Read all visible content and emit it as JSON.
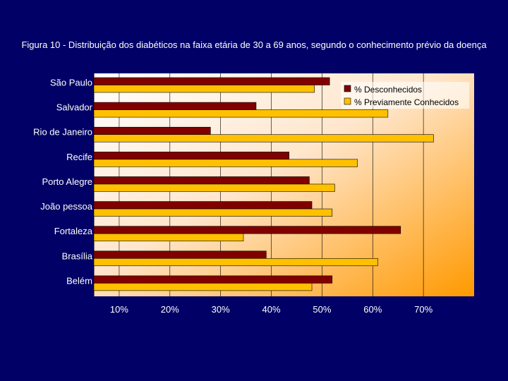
{
  "slide": {
    "background": "#000066"
  },
  "chart_data": {
    "type": "bar",
    "orientation": "horizontal",
    "title": "Figura 10 - Distribuição dos diabéticos na faixa etária de 30 a 69 anos, segundo o conhecimento prévio da doença",
    "categories": [
      "São Paulo",
      "Salvador",
      "Rio de Janeiro",
      "Recife",
      "Porto Alegre",
      "João pessoa",
      "Fortaleza",
      "Brasília",
      "Belém"
    ],
    "series": [
      {
        "name": "% Desconhecidos",
        "color": "#800000",
        "values": [
          51.5,
          37,
          28,
          43.5,
          47.5,
          48,
          65.5,
          39,
          52
        ]
      },
      {
        "name": "%  Previamente Conhecidos",
        "color": "#FFC000",
        "values": [
          48.5,
          63,
          72,
          57,
          52.5,
          52,
          34.5,
          61,
          48
        ]
      }
    ],
    "xlim": [
      5,
      80
    ],
    "xticks": [
      10,
      20,
      30,
      40,
      50,
      60,
      70
    ],
    "xtick_labels": [
      "10%",
      "20%",
      "30%",
      "40%",
      "50%",
      "60%",
      "70%"
    ],
    "grid": "vertical",
    "legend": "top-right",
    "plot_background": "gradient white to orange"
  }
}
